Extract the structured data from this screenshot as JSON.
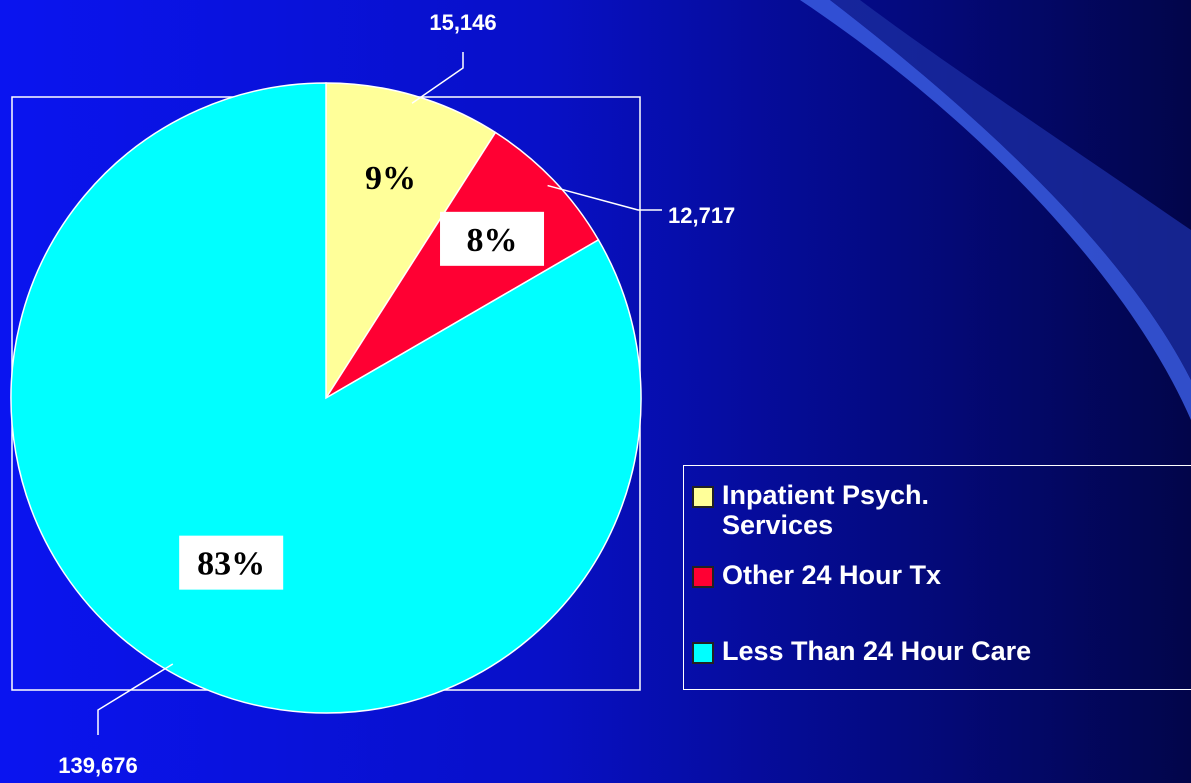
{
  "chart_data": {
    "type": "pie",
    "categories": [
      "Inpatient Psych. Services",
      "Other 24 Hour Tx",
      "Less Than 24 Hour Care"
    ],
    "values": [
      15146,
      12717,
      139676
    ],
    "value_labels": [
      "15,146",
      "12,717",
      "139,676"
    ],
    "percent_labels": [
      "9%",
      "8%",
      "83%"
    ],
    "colors": [
      "#ffff99",
      "#ff0033",
      "#00ffff"
    ],
    "legend": "right"
  }
}
